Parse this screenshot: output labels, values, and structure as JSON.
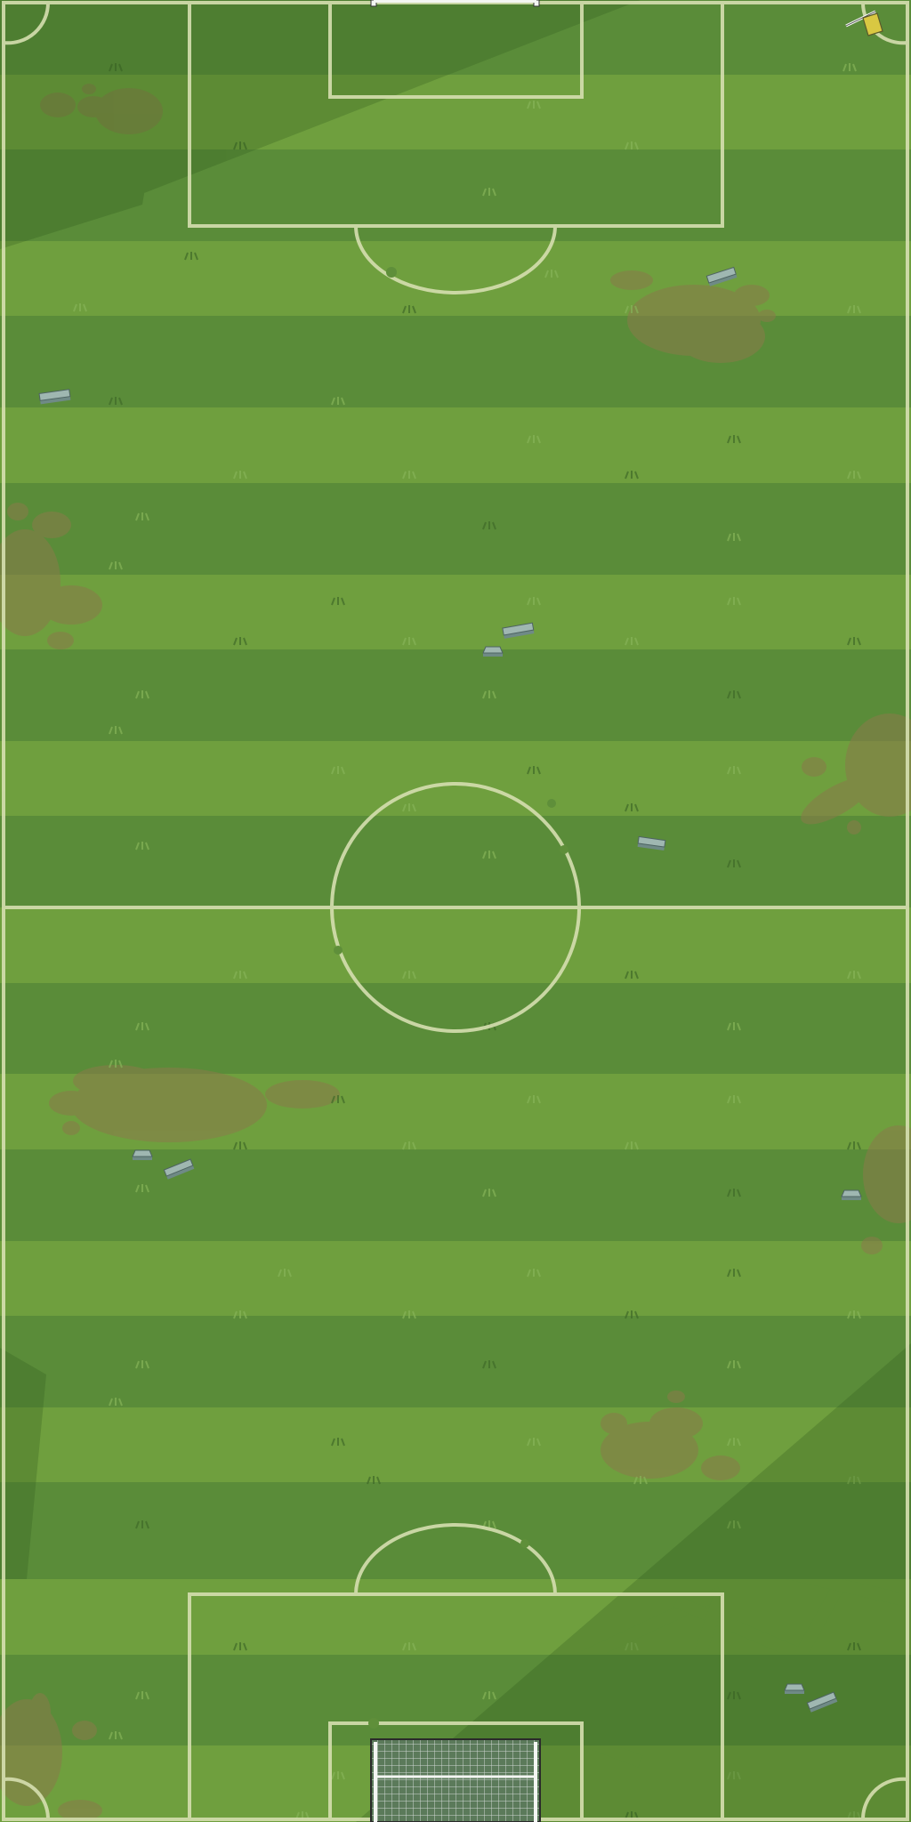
{
  "scene": {
    "type": "top-down football pitch",
    "orientation": "portrait",
    "colors": {
      "grass_dark": "#5a8c39",
      "grass_light": "#6f9f3e",
      "line": "#d6dfb0",
      "mud": "#8a7a4a",
      "shadow": "#2f5a1c",
      "rock_top": "#9fb7b1",
      "rock_side": "#6f8a86",
      "flag": "#d9c842",
      "net": "#cfd6d2",
      "post": "#f3f5f2"
    }
  },
  "pitch": {
    "stripe_count": 24,
    "markings": [
      "touchlines",
      "halfway-line",
      "center-circle",
      "penalty-boxes",
      "goal-areas",
      "penalty-arcs",
      "corner-arcs"
    ]
  },
  "objects": {
    "corner_flag": {
      "icon": "corner-flag-icon",
      "color": "#d9c842"
    },
    "goal": {
      "icon": "goal-net-icon"
    },
    "rock_count": 12,
    "mud_patch_count": 7
  }
}
